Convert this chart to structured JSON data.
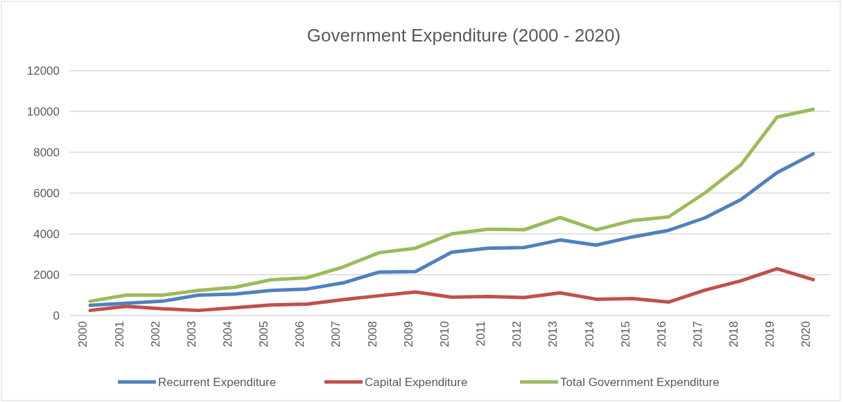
{
  "chart_data": {
    "type": "line",
    "title": "Government Expenditure (2000 - 2020)",
    "categories": [
      "2000",
      "2001",
      "2002",
      "2003",
      "2004",
      "2005",
      "2006",
      "2007",
      "2008",
      "2009",
      "2010",
      "2011",
      "2012",
      "2013",
      "2014",
      "2015",
      "2016",
      "2017",
      "2018",
      "2019",
      "2020"
    ],
    "series": [
      {
        "name": "Recurrent Expenditure",
        "color": "#4f81bd",
        "values": [
          500,
          600,
          700,
          1000,
          1050,
          1230,
          1300,
          1600,
          2130,
          2150,
          3100,
          3300,
          3330,
          3700,
          3450,
          3850,
          4170,
          4780,
          5680,
          7000,
          7920
        ]
      },
      {
        "name": "Capital Expenditure",
        "color": "#c0504d",
        "values": [
          250,
          450,
          330,
          250,
          380,
          520,
          560,
          780,
          970,
          1150,
          900,
          930,
          880,
          1110,
          800,
          830,
          660,
          1240,
          1700,
          2290,
          1760
        ]
      },
      {
        "name": "Total Government Expenditure",
        "color": "#9bbb59",
        "values": [
          700,
          1000,
          1000,
          1230,
          1380,
          1750,
          1850,
          2380,
          3080,
          3300,
          4000,
          4230,
          4200,
          4800,
          4200,
          4650,
          4830,
          6000,
          7380,
          9720,
          10100
        ]
      }
    ],
    "ylim": [
      0,
      12000
    ],
    "yticks": [
      0,
      2000,
      4000,
      6000,
      8000,
      10000,
      12000
    ],
    "grid": "y",
    "legend": "bottom",
    "marker": "none",
    "line_style": "solid"
  }
}
